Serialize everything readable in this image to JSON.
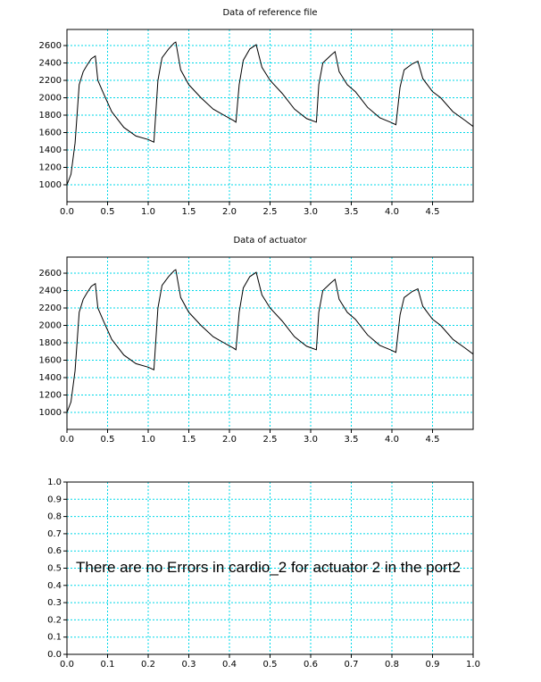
{
  "chart_data": [
    {
      "type": "line",
      "title": "Data of reference file",
      "color": "#000000",
      "grid": true,
      "x": [
        0,
        0.05,
        0.1,
        0.15,
        0.2,
        0.25,
        0.3,
        0.35,
        0.38,
        0.45,
        0.55,
        0.7,
        0.85,
        1.0,
        1.07,
        1.12,
        1.17,
        1.25,
        1.32,
        1.34,
        1.4,
        1.5,
        1.65,
        1.8,
        1.95,
        2.05,
        2.08,
        2.12,
        2.17,
        2.25,
        2.33,
        2.4,
        2.5,
        2.65,
        2.8,
        2.95,
        3.07,
        3.1,
        3.15,
        3.25,
        3.3,
        3.35,
        3.45,
        3.55,
        3.7,
        3.85,
        3.98,
        4.05,
        4.1,
        4.15,
        4.25,
        4.32,
        4.38,
        4.5,
        4.6,
        4.75,
        4.9,
        5.0
      ],
      "values": [
        1000,
        1120,
        1480,
        2150,
        2300,
        2380,
        2450,
        2480,
        2200,
        2050,
        1840,
        1660,
        1560,
        1520,
        1490,
        2200,
        2460,
        2560,
        2630,
        2640,
        2320,
        2150,
        2000,
        1870,
        1790,
        1740,
        1720,
        2150,
        2430,
        2560,
        2610,
        2350,
        2200,
        2050,
        1870,
        1760,
        1720,
        2150,
        2400,
        2490,
        2530,
        2300,
        2150,
        2070,
        1890,
        1770,
        1720,
        1690,
        2120,
        2320,
        2390,
        2420,
        2220,
        2070,
        2000,
        1840,
        1740,
        1670
      ],
      "xlim": [
        0,
        5
      ],
      "ylim": [
        805,
        2785
      ],
      "xticks": [
        {
          "value": 0,
          "label": "0.0"
        },
        0.5,
        {
          "value": 1,
          "label": "1.0"
        },
        1.5,
        {
          "value": 2,
          "label": "2.0"
        },
        2.5,
        {
          "value": 3,
          "label": "3.0"
        },
        3.5,
        {
          "value": 4,
          "label": "4.0"
        },
        4.5
      ],
      "yticks": [
        1000,
        1200,
        1400,
        1600,
        1800,
        2000,
        2200,
        2400,
        2600
      ]
    },
    {
      "type": "line",
      "title": "Data of actuator",
      "color": "#000000",
      "grid": true,
      "x": [
        0,
        0.05,
        0.1,
        0.15,
        0.2,
        0.25,
        0.3,
        0.35,
        0.38,
        0.45,
        0.55,
        0.7,
        0.85,
        1.0,
        1.07,
        1.12,
        1.17,
        1.25,
        1.32,
        1.34,
        1.4,
        1.5,
        1.65,
        1.8,
        1.95,
        2.05,
        2.08,
        2.12,
        2.17,
        2.25,
        2.33,
        2.4,
        2.5,
        2.65,
        2.8,
        2.95,
        3.07,
        3.1,
        3.15,
        3.25,
        3.3,
        3.35,
        3.45,
        3.55,
        3.7,
        3.85,
        3.98,
        4.05,
        4.1,
        4.15,
        4.25,
        4.32,
        4.38,
        4.5,
        4.6,
        4.75,
        4.9,
        5.0
      ],
      "values": [
        1000,
        1120,
        1480,
        2150,
        2300,
        2380,
        2450,
        2480,
        2200,
        2050,
        1840,
        1660,
        1560,
        1520,
        1490,
        2200,
        2460,
        2560,
        2630,
        2640,
        2320,
        2150,
        2000,
        1870,
        1790,
        1740,
        1720,
        2150,
        2430,
        2560,
        2610,
        2350,
        2200,
        2050,
        1870,
        1760,
        1720,
        2150,
        2400,
        2490,
        2530,
        2300,
        2150,
        2070,
        1890,
        1770,
        1720,
        1690,
        2120,
        2320,
        2390,
        2420,
        2220,
        2070,
        2000,
        1840,
        1740,
        1670
      ],
      "xlim": [
        0,
        5
      ],
      "ylim": [
        805,
        2785
      ],
      "xticks": [
        {
          "value": 0,
          "label": "0.0"
        },
        0.5,
        {
          "value": 1,
          "label": "1.0"
        },
        1.5,
        {
          "value": 2,
          "label": "2.0"
        },
        2.5,
        {
          "value": 3,
          "label": "3.0"
        },
        3.5,
        {
          "value": 4,
          "label": "4.0"
        },
        4.5
      ],
      "yticks": [
        1000,
        1200,
        1400,
        1600,
        1800,
        2000,
        2200,
        2400,
        2600
      ]
    },
    {
      "type": "line",
      "annotation": "There are no Errors in cardio_2 for actuator 2 in the port2",
      "grid": true,
      "xlim": [
        0,
        1
      ],
      "ylim": [
        0,
        1
      ],
      "xticks": [
        {
          "value": 0,
          "label": "0.0"
        },
        0.1,
        0.2,
        0.3,
        0.4,
        0.5,
        0.6,
        0.7,
        0.8,
        0.9,
        {
          "value": 1,
          "label": "1.0"
        }
      ],
      "yticks": [
        {
          "value": 0,
          "label": "0.0"
        },
        0.1,
        0.2,
        0.3,
        0.4,
        0.5,
        0.6,
        0.7,
        0.8,
        0.9,
        {
          "value": 1,
          "label": "1.0"
        }
      ]
    }
  ]
}
